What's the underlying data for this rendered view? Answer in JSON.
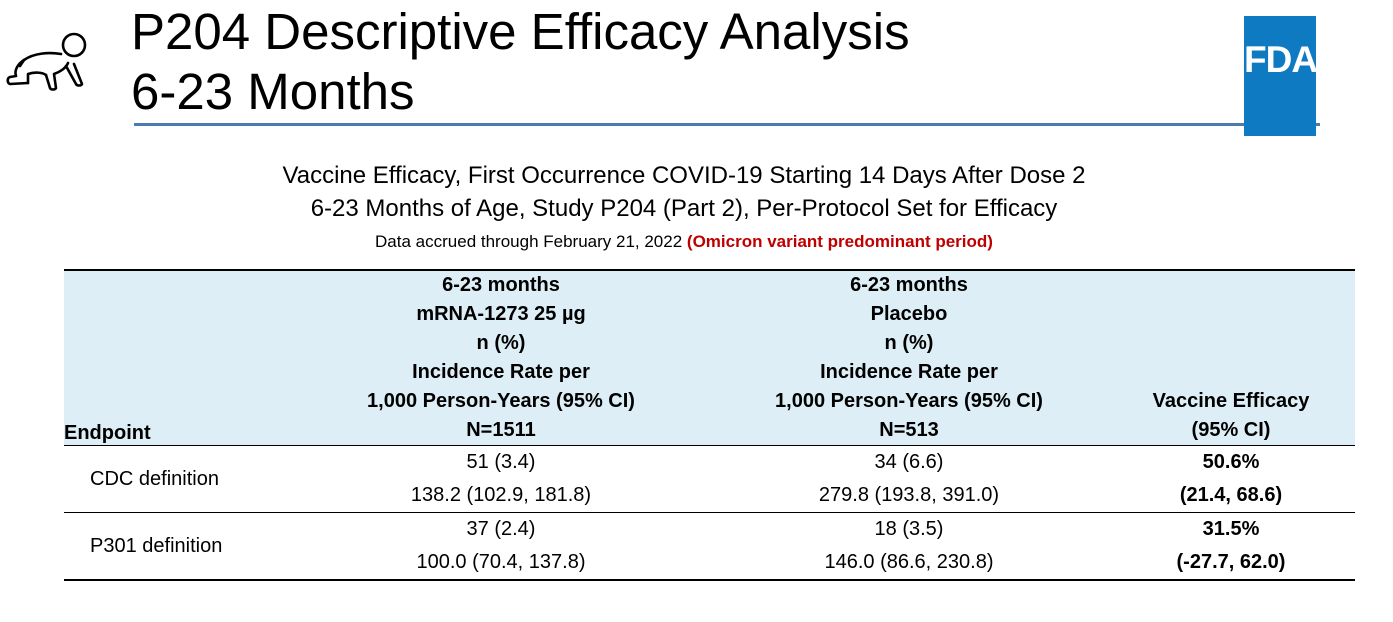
{
  "header": {
    "title_line1": "P204 Descriptive Efficacy Analysis",
    "title_line2": "6-23 Months",
    "logo_text": "FDA",
    "logo_color": "#0e7ac2",
    "rule_color": "#4a7bb5",
    "icon": "crawling-baby-icon"
  },
  "caption": {
    "line1": "Vaccine Efficacy, First Occurrence COVID-19 Starting 14 Days After Dose 2",
    "line2": "6-23 Months of Age, Study P204 (Part 2), Per-Protocol Set for Efficacy",
    "line3_prefix": "Data accrued through February 21, 2022 ",
    "line3_highlight": "(Omicron variant predominant period)",
    "highlight_color": "#c00000"
  },
  "table": {
    "header_bg": "#ddeef6",
    "col_endpoint": "Endpoint",
    "col_vaccine": [
      "6-23 months",
      "mRNA-1273 25 µg",
      "n (%)",
      "Incidence Rate per",
      "1,000 Person-Years (95% CI)",
      "N=1511"
    ],
    "col_placebo": [
      "6-23 months",
      "Placebo",
      "n (%)",
      "Incidence Rate per",
      "1,000 Person-Years (95% CI)",
      "N=513"
    ],
    "col_efficacy": [
      "Vaccine Efficacy",
      "(95% CI)"
    ],
    "rows": [
      {
        "endpoint": "CDC definition",
        "vaccine_n": "51 (3.4)",
        "vaccine_rate": "138.2 (102.9, 181.8)",
        "placebo_n": "34 (6.6)",
        "placebo_rate": "279.8 (193.8, 391.0)",
        "efficacy": "50.6%",
        "efficacy_ci": "(21.4, 68.6)"
      },
      {
        "endpoint": "P301 definition",
        "vaccine_n": "37 (2.4)",
        "vaccine_rate": "100.0 (70.4, 137.8)",
        "placebo_n": "18 (3.5)",
        "placebo_rate": "146.0 (86.6, 230.8)",
        "efficacy": "31.5%",
        "efficacy_ci": "(-27.7, 62.0)"
      }
    ]
  }
}
